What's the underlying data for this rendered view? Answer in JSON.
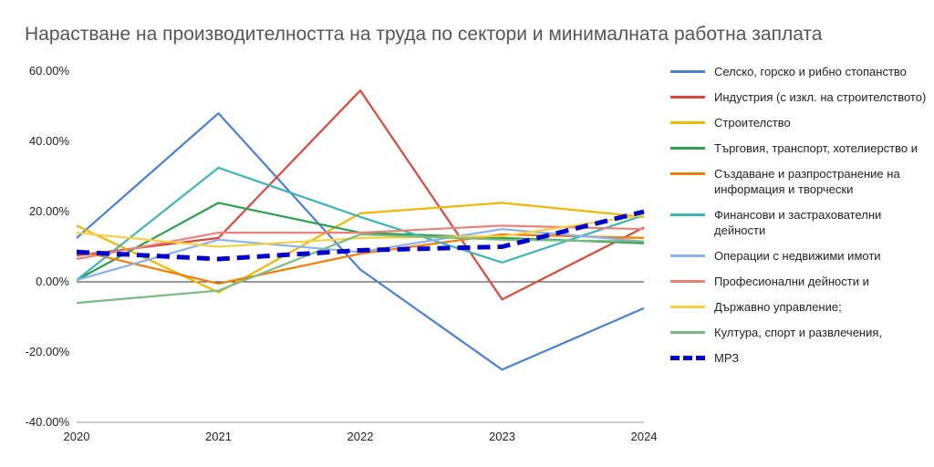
{
  "chart_data": {
    "type": "line",
    "title": "Нарастване на производителността на труда по сектори и минималната работна заплата",
    "xlabel": "",
    "ylabel": "",
    "x": [
      "2020",
      "2021",
      "2022",
      "2023",
      "2024"
    ],
    "ylim": [
      -40,
      60
    ],
    "yticks": [
      -40,
      -20,
      0,
      20,
      40,
      60
    ],
    "ytick_labels": [
      "-40.00%",
      "-20.00%",
      "0.00%",
      "20.00%",
      "40.00%",
      "60.00%"
    ],
    "legend_position": "right",
    "grid": false,
    "series": [
      {
        "name": "Селско, горско и рибно стопанство",
        "color": "#4a7fd4",
        "values": [
          12.5,
          48,
          3.5,
          -25,
          -7.5
        ]
      },
      {
        "name": "Индустрия (с изкл. на строителството)",
        "color": "#d9483b",
        "values": [
          7.5,
          12.5,
          54.5,
          -5,
          15.5
        ]
      },
      {
        "name": "Строителство",
        "color": "#f2b705",
        "values": [
          16,
          -3,
          19.5,
          22.5,
          18.5
        ]
      },
      {
        "name": "Търговия, транспорт, хотелиерство и",
        "color": "#2e9e52",
        "values": [
          0.5,
          22.5,
          14,
          12.5,
          11
        ]
      },
      {
        "name": "Създаване и разпространение на информация и творчески",
        "color": "#f57c00",
        "values": [
          9,
          -0.5,
          8,
          13.5,
          12.5
        ]
      },
      {
        "name": "Финансови и застрахователни дейности",
        "color": "#3fb4b4",
        "values": [
          0.5,
          32.5,
          18.5,
          5.5,
          19
        ]
      },
      {
        "name": "Операции с недвижими имоти",
        "color": "#8ab0ee",
        "values": [
          0.5,
          12,
          8.5,
          15,
          11.5
        ]
      },
      {
        "name": "Професионални дейности и",
        "color": "#e8837a",
        "values": [
          6.5,
          14,
          14,
          16,
          15
        ]
      },
      {
        "name": "Държавно управление;",
        "color": "#f7d046",
        "values": [
          14,
          10,
          12.5,
          13,
          19
        ]
      },
      {
        "name": "Култура, спорт и развлечения,",
        "color": "#7dbb84",
        "values": [
          -6,
          -2.5,
          13.5,
          12,
          11.5
        ]
      },
      {
        "name": "МРЗ",
        "color": "#0000cc",
        "dashed": true,
        "values": [
          8.5,
          6.5,
          9,
          10,
          20
        ]
      }
    ]
  }
}
